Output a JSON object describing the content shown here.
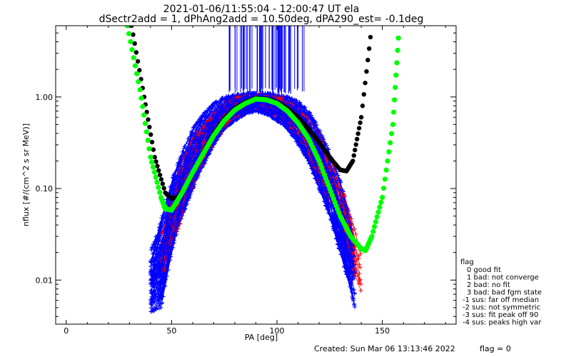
{
  "chart_data": {
    "type": "scatter",
    "title_line1": "2021-01-06/11:55:04 - 12:00:47 UT ela",
    "title_line2": "dSectr2add = 1, dPhAng2add = 10.50deg, dPA290_est=  -0.1deg",
    "xlabel": "PA [deg]",
    "ylabel": "nflux [#/(cm^2 s sr MeV)]",
    "xlim": [
      -5,
      185
    ],
    "ylim_log": [
      0.0033,
      6.0
    ],
    "y_scale": "log",
    "xticks": [
      0,
      50,
      100,
      150
    ],
    "yticks": [
      {
        "value": 0.01,
        "label": "0.01"
      },
      {
        "value": 0.1,
        "label": "0.10"
      },
      {
        "value": 1.0,
        "label": "1.00"
      }
    ],
    "colors": {
      "blue": "#0000ff",
      "red": "#ff0000",
      "green": "#00ff00",
      "black": "#000000"
    },
    "blue_envelope": [
      [
        40,
        0.0045,
        0.02
      ],
      [
        45,
        0.005,
        0.045
      ],
      [
        50,
        0.02,
        0.12
      ],
      [
        55,
        0.05,
        0.25
      ],
      [
        60,
        0.1,
        0.45
      ],
      [
        65,
        0.18,
        0.65
      ],
      [
        70,
        0.3,
        0.85
      ],
      [
        75,
        0.45,
        1.0
      ],
      [
        80,
        0.55,
        1.05
      ],
      [
        85,
        0.65,
        1.1
      ],
      [
        90,
        0.7,
        1.1
      ],
      [
        95,
        0.65,
        1.1
      ],
      [
        100,
        0.55,
        1.05
      ],
      [
        105,
        0.45,
        1.0
      ],
      [
        110,
        0.3,
        0.9
      ],
      [
        115,
        0.2,
        0.7
      ],
      [
        120,
        0.1,
        0.45
      ],
      [
        125,
        0.05,
        0.25
      ],
      [
        130,
        0.02,
        0.12
      ],
      [
        135,
        0.008,
        0.045
      ],
      [
        137,
        0.005,
        0.025
      ]
    ],
    "red_envelope": [
      [
        45,
        0.008,
        0.03
      ],
      [
        50,
        0.02,
        0.08
      ],
      [
        55,
        0.05,
        0.2
      ],
      [
        60,
        0.1,
        0.35
      ],
      [
        70,
        0.3,
        0.75
      ],
      [
        80,
        0.6,
        1.0
      ],
      [
        90,
        0.75,
        1.1
      ],
      [
        100,
        0.6,
        1.05
      ],
      [
        110,
        0.35,
        0.8
      ],
      [
        120,
        0.12,
        0.4
      ],
      [
        130,
        0.04,
        0.12
      ],
      [
        135,
        0.015,
        0.05
      ],
      [
        140,
        0.007,
        0.02
      ]
    ],
    "green_fit": [
      [
        29,
        6.0
      ],
      [
        35,
        1.2
      ],
      [
        40,
        0.22
      ],
      [
        45,
        0.08
      ],
      [
        47,
        0.06
      ],
      [
        50,
        0.058
      ],
      [
        55,
        0.09
      ],
      [
        60,
        0.15
      ],
      [
        65,
        0.24
      ],
      [
        70,
        0.38
      ],
      [
        75,
        0.55
      ],
      [
        80,
        0.72
      ],
      [
        85,
        0.85
      ],
      [
        90,
        0.95
      ],
      [
        95,
        0.93
      ],
      [
        100,
        0.85
      ],
      [
        105,
        0.7
      ],
      [
        110,
        0.52
      ],
      [
        115,
        0.35
      ],
      [
        120,
        0.2
      ],
      [
        125,
        0.1
      ],
      [
        130,
        0.05
      ],
      [
        135,
        0.03
      ],
      [
        140,
        0.022
      ],
      [
        142,
        0.021
      ],
      [
        145,
        0.03
      ],
      [
        150,
        0.08
      ],
      [
        155,
        0.5
      ],
      [
        158,
        6.0
      ]
    ],
    "black_fit": [
      [
        31,
        6.0
      ],
      [
        37,
        1.0
      ],
      [
        42,
        0.22
      ],
      [
        47,
        0.09
      ],
      [
        50,
        0.078
      ],
      [
        53,
        0.08
      ],
      [
        58,
        0.12
      ],
      [
        65,
        0.25
      ],
      [
        70,
        0.4
      ],
      [
        75,
        0.58
      ],
      [
        80,
        0.75
      ],
      [
        85,
        0.88
      ],
      [
        90,
        0.97
      ],
      [
        95,
        0.95
      ],
      [
        100,
        0.88
      ],
      [
        105,
        0.75
      ],
      [
        110,
        0.6
      ],
      [
        115,
        0.45
      ],
      [
        120,
        0.32
      ],
      [
        125,
        0.22
      ],
      [
        130,
        0.16
      ],
      [
        133,
        0.155
      ],
      [
        136,
        0.2
      ],
      [
        140,
        0.6
      ],
      [
        145,
        6.0
      ]
    ],
    "vline_range": [
      77,
      113
    ],
    "vline_top": 6.0,
    "vline_bottom": 1.1,
    "legend_title": "flag",
    "legend": [
      "0 good fit",
      "1 bad: not converge",
      "2 bad: no fit",
      "3 bad: bad fgm state",
      "-1 sus: far off median",
      "-2 sus: not symmetric",
      "-3 sus: fit peak off 90",
      "-4 sus: peaks high var"
    ],
    "footer_created": "Created: Sun Mar 06 13:13:46 2022",
    "footer_flag": "flag = 0"
  }
}
